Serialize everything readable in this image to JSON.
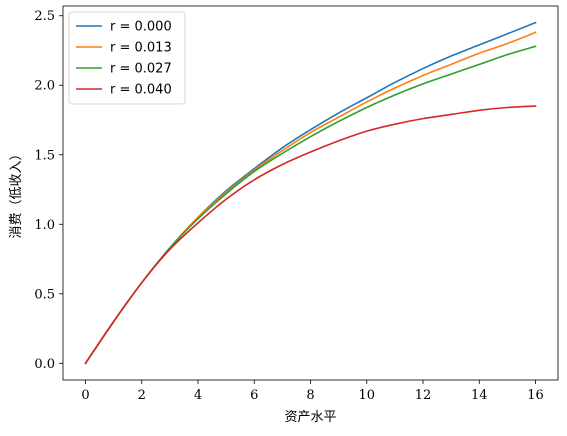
{
  "chart_data": {
    "type": "line",
    "xlabel": "资产水平",
    "ylabel": "消费（低收入）",
    "xlim": [
      -0.8,
      16.8
    ],
    "ylim": [
      -0.12,
      2.57
    ],
    "xticks": [
      0,
      2,
      4,
      6,
      8,
      10,
      12,
      14,
      16
    ],
    "xtick_labels": [
      "0",
      "2",
      "4",
      "6",
      "8",
      "10",
      "12",
      "14",
      "16"
    ],
    "yticks": [
      0.0,
      0.5,
      1.0,
      1.5,
      2.0,
      2.5
    ],
    "ytick_labels": [
      "0.0",
      "0.5",
      "1.0",
      "1.5",
      "2.0",
      "2.5"
    ],
    "grid": false,
    "legend_position": "top-left",
    "x": [
      0,
      1,
      2,
      3,
      4,
      5,
      6,
      7,
      8,
      9,
      10,
      11,
      12,
      13,
      14,
      15,
      16
    ],
    "series": [
      {
        "name": "r = 0.000",
        "color": "#1f77b4",
        "values": [
          0.0,
          0.3,
          0.58,
          0.83,
          1.05,
          1.24,
          1.4,
          1.55,
          1.68,
          1.8,
          1.91,
          2.02,
          2.12,
          2.21,
          2.29,
          2.37,
          2.45
        ]
      },
      {
        "name": "r = 0.013",
        "color": "#ff7f0e",
        "values": [
          0.0,
          0.3,
          0.58,
          0.83,
          1.05,
          1.23,
          1.39,
          1.53,
          1.66,
          1.77,
          1.88,
          1.98,
          2.07,
          2.15,
          2.23,
          2.3,
          2.38
        ]
      },
      {
        "name": "r = 0.027",
        "color": "#2ca02c",
        "values": [
          0.0,
          0.3,
          0.58,
          0.83,
          1.04,
          1.22,
          1.38,
          1.51,
          1.63,
          1.74,
          1.84,
          1.93,
          2.01,
          2.08,
          2.15,
          2.22,
          2.28
        ]
      },
      {
        "name": "r = 0.040",
        "color": "#d62728",
        "values": [
          0.0,
          0.3,
          0.58,
          0.82,
          1.01,
          1.18,
          1.32,
          1.43,
          1.52,
          1.6,
          1.67,
          1.72,
          1.76,
          1.79,
          1.82,
          1.84,
          1.85
        ]
      }
    ]
  }
}
